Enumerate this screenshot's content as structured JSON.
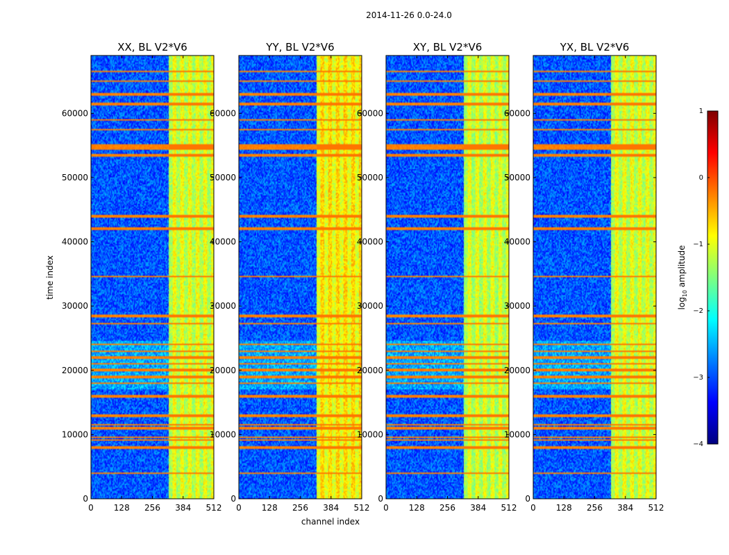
{
  "chart_data": {
    "type": "heatmap",
    "suptitle": "2014-11-26 0.0-24.0",
    "xlabel": "channel index",
    "ylabel": "time index",
    "xlim": [
      0,
      512
    ],
    "ylim": [
      0,
      69000
    ],
    "xticks": [
      "0",
      "128",
      "256",
      "384",
      "512"
    ],
    "yticks": [
      "0",
      "10000",
      "20000",
      "30000",
      "40000",
      "50000",
      "60000"
    ],
    "panels": [
      {
        "title": "XX, BL V2*V6",
        "level": 1.0
      },
      {
        "title": "YY, BL V2*V6",
        "level": 1.25
      },
      {
        "title": "XY, BL V2*V6",
        "level": 0.95
      },
      {
        "title": "YX, BL V2*V6",
        "level": 1.0
      }
    ],
    "colorbar": {
      "label_main": "log",
      "label_sub": "10",
      "label_tail": " amplitude",
      "min": -4,
      "max": 1,
      "ticks": [
        "1",
        "0",
        "−1",
        "−2",
        "−3",
        "−4"
      ],
      "colormap": [
        "#00007f",
        "#0000ff",
        "#007fff",
        "#00ffff",
        "#7fff7f",
        "#ffff00",
        "#ff7f00",
        "#ff0000",
        "#7f0000"
      ]
    },
    "rfi_channels_start": 325,
    "rfi_lines_time_index": [
      4000,
      8000,
      9200,
      9600,
      11000,
      11500,
      13000,
      16000,
      18000,
      19000,
      20000,
      21000,
      22000,
      23000,
      24000,
      27300,
      28500,
      34600,
      42000,
      44000,
      53500,
      54500,
      55000,
      57500,
      59000,
      61500,
      63000,
      65000,
      66500
    ]
  }
}
